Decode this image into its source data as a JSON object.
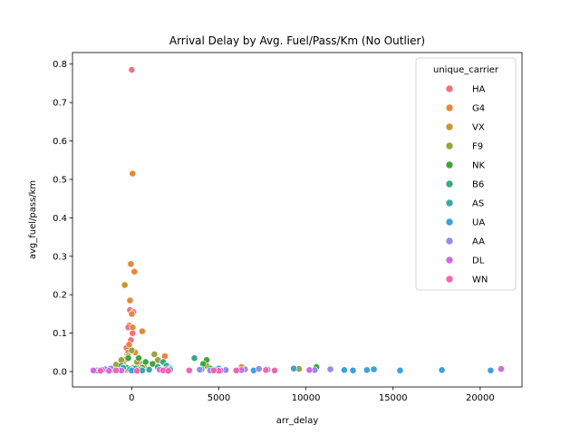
{
  "chart_data": {
    "type": "scatter",
    "title": "Arrival Delay by Avg. Fuel/Pass/Km (No Outlier)",
    "xlabel": "arr_delay",
    "ylabel": "avg_fuel/pass/km",
    "xlim": [
      -3400,
      22400
    ],
    "ylim": [
      -0.04,
      0.83
    ],
    "xticks": [
      0,
      5000,
      10000,
      15000,
      20000
    ],
    "xtick_labels": [
      "0",
      "5000",
      "10000",
      "15000",
      "20000"
    ],
    "yticks": [
      0.0,
      0.1,
      0.2,
      0.3,
      0.4,
      0.5,
      0.6,
      0.7,
      0.8
    ],
    "ytick_labels": [
      "0.0",
      "0.1",
      "0.2",
      "0.3",
      "0.4",
      "0.5",
      "0.6",
      "0.7",
      "0.8"
    ],
    "grid": false,
    "legend": {
      "title": "unique_carrier",
      "placement": "top-right"
    },
    "series": [
      {
        "name": "HA",
        "color": "#f0727d",
        "points": [
          [
            0,
            0.785
          ],
          [
            -150,
            0.12
          ],
          [
            -200,
            0.115
          ],
          [
            -100,
            0.16
          ],
          [
            50,
            0.1
          ],
          [
            -50,
            0.082
          ],
          [
            -300,
            0.062
          ],
          [
            100,
            0.155
          ],
          [
            -250,
            0.045
          ],
          [
            0,
            0.005
          ],
          [
            -100,
            0.003
          ]
        ]
      },
      {
        "name": "G4",
        "color": "#e8873a",
        "points": [
          [
            50,
            0.515
          ],
          [
            -50,
            0.28
          ],
          [
            150,
            0.26
          ],
          [
            -100,
            0.185
          ],
          [
            0,
            0.15
          ],
          [
            50,
            0.115
          ],
          [
            600,
            0.105
          ],
          [
            -150,
            0.07
          ],
          [
            200,
            0.05
          ],
          [
            1900,
            0.04
          ],
          [
            500,
            0.02
          ],
          [
            -400,
            0.03
          ],
          [
            300,
            0.01
          ],
          [
            6300,
            0.012
          ],
          [
            9600,
            0.006
          ]
        ]
      },
      {
        "name": "VX",
        "color": "#c49a2e",
        "points": [
          [
            -400,
            0.225
          ],
          [
            -200,
            0.05
          ],
          [
            -500,
            0.02
          ],
          [
            100,
            0.01
          ],
          [
            -300,
            0.005
          ],
          [
            700,
            0.015
          ]
        ]
      },
      {
        "name": "F9",
        "color": "#9aa33e",
        "points": [
          [
            0,
            0.055
          ],
          [
            -200,
            0.04
          ],
          [
            -600,
            0.03
          ],
          [
            -900,
            0.018
          ],
          [
            300,
            0.025
          ],
          [
            1300,
            0.045
          ],
          [
            1500,
            0.03
          ],
          [
            -400,
            0.012
          ],
          [
            4300,
            0.015
          ],
          [
            10600,
            0.01
          ],
          [
            9600,
            0.007
          ]
        ]
      },
      {
        "name": "NK",
        "color": "#3ea63e",
        "points": [
          [
            -200,
            0.035
          ],
          [
            400,
            0.035
          ],
          [
            800,
            0.025
          ],
          [
            1200,
            0.02
          ],
          [
            4300,
            0.03
          ],
          [
            4100,
            0.02
          ],
          [
            600,
            0.01
          ],
          [
            4500,
            0.008
          ],
          [
            -600,
            0.015
          ],
          [
            10600,
            0.012
          ]
        ]
      },
      {
        "name": "B6",
        "color": "#36aa85",
        "points": [
          [
            3600,
            0.035
          ],
          [
            1800,
            0.025
          ],
          [
            2000,
            0.015
          ],
          [
            2200,
            0.008
          ],
          [
            -300,
            0.01
          ],
          [
            500,
            0.005
          ],
          [
            1500,
            0.012
          ]
        ]
      },
      {
        "name": "AS",
        "color": "#38a8a8",
        "points": [
          [
            -500,
            0.01
          ],
          [
            200,
            0.008
          ],
          [
            1000,
            0.005
          ],
          [
            600,
            0.003
          ],
          [
            -100,
            0.006
          ]
        ]
      },
      {
        "name": "UA",
        "color": "#3ba3d8",
        "points": [
          [
            20600,
            0.003
          ],
          [
            17800,
            0.004
          ],
          [
            15400,
            0.003
          ],
          [
            13900,
            0.006
          ],
          [
            13500,
            0.004
          ],
          [
            12700,
            0.003
          ],
          [
            12200,
            0.004
          ],
          [
            9300,
            0.008
          ],
          [
            7000,
            0.003
          ],
          [
            5000,
            0.008
          ],
          [
            0,
            0.003
          ],
          [
            4000,
            0.006
          ],
          [
            -2000,
            0.003
          ],
          [
            -1000,
            0.004
          ],
          [
            2200,
            0.005
          ]
        ]
      },
      {
        "name": "AA",
        "color": "#8f8ee6",
        "points": [
          [
            11400,
            0.006
          ],
          [
            10500,
            0.004
          ],
          [
            7300,
            0.007
          ],
          [
            6500,
            0.006
          ],
          [
            5400,
            0.004
          ],
          [
            3900,
            0.005
          ],
          [
            -1500,
            0.006
          ],
          [
            -1800,
            0.004
          ],
          [
            -2200,
            0.003
          ],
          [
            -1200,
            0.008
          ],
          [
            2000,
            0.006
          ],
          [
            4500,
            0.003
          ],
          [
            6200,
            0.004
          ],
          [
            7800,
            0.005
          ]
        ]
      },
      {
        "name": "DL",
        "color": "#d169e0",
        "points": [
          [
            21200,
            0.007
          ],
          [
            10200,
            0.004
          ],
          [
            4800,
            0.004
          ],
          [
            5100,
            0.003
          ],
          [
            -2200,
            0.003
          ],
          [
            -1700,
            0.004
          ],
          [
            -600,
            0.003
          ],
          [
            1600,
            0.005
          ],
          [
            6300,
            0.004
          ],
          [
            -1300,
            0.002
          ]
        ]
      },
      {
        "name": "WN",
        "color": "#f066b4",
        "points": [
          [
            3300,
            0.003
          ],
          [
            5000,
            0.002
          ],
          [
            6000,
            0.003
          ],
          [
            7700,
            0.004
          ],
          [
            8200,
            0.003
          ],
          [
            4700,
            0.003
          ],
          [
            -1800,
            0.002
          ],
          [
            -900,
            0.003
          ],
          [
            300,
            0.002
          ],
          [
            1800,
            0.003
          ],
          [
            2100,
            0.002
          ]
        ]
      }
    ]
  }
}
